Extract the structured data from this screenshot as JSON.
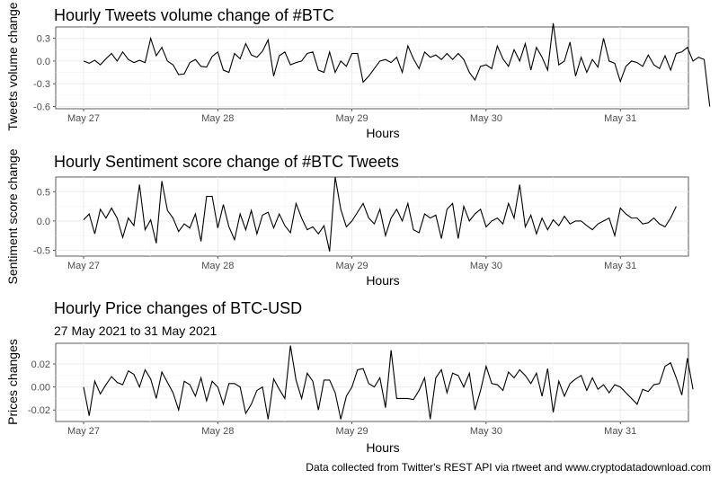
{
  "caption": "Data collected from Twitter's REST API via rtweet and www.cryptodatadownload.com",
  "chart_data": [
    {
      "type": "line",
      "title": "Hourly Tweets volume change of #BTC",
      "subtitle": "",
      "xlabel": "Hours",
      "ylabel": "Tweets volume change",
      "x_ticks": [
        "May 27",
        "May 28",
        "May 29",
        "May 30",
        "May 31"
      ],
      "y_ticks": [
        "-0.6",
        "-0.3",
        "0.0",
        "0.3"
      ],
      "y_tick_values": [
        -0.6,
        -0.3,
        0.0,
        0.3
      ],
      "ylim": [
        -0.63,
        0.45
      ],
      "x_start_hour": 0,
      "grid": true,
      "series": [
        {
          "values": [
            0.0,
            -0.03,
            0.01,
            -0.05,
            0.03,
            0.1,
            0.0,
            0.12,
            0.02,
            -0.02,
            0.01,
            -0.02,
            0.3,
            0.07,
            0.18,
            0.0,
            -0.05,
            -0.18,
            -0.17,
            -0.02,
            0.02,
            -0.07,
            -0.08,
            0.06,
            0.12,
            -0.12,
            -0.15,
            0.1,
            0.03,
            0.23,
            0.08,
            0.05,
            0.13,
            0.28,
            -0.2,
            0.07,
            0.12,
            -0.05,
            -0.02,
            0.0,
            0.1,
            0.12,
            -0.12,
            -0.15,
            0.12,
            -0.15,
            0.0,
            -0.07,
            0.1,
            0.1,
            -0.28,
            -0.2,
            -0.1,
            0.0,
            0.02,
            -0.02,
            0.05,
            -0.15,
            0.2,
            0.03,
            -0.1,
            0.12,
            0.05,
            0.08,
            0.02,
            0.1,
            0.02,
            0.1,
            0.02,
            -0.15,
            -0.25,
            -0.07,
            -0.05,
            -0.1,
            0.2,
            0.03,
            -0.07,
            0.15,
            0.0,
            0.23,
            -0.12,
            0.18,
            0.05,
            -0.12,
            0.5,
            -0.05,
            0.0,
            0.25,
            -0.2,
            0.05,
            -0.15,
            0.02,
            -0.08,
            0.3,
            0.0,
            -0.03,
            -0.27,
            -0.07,
            0.0,
            -0.02,
            -0.07,
            0.08,
            -0.05,
            -0.1,
            0.07,
            -0.12,
            0.1,
            0.12,
            0.18,
            0.0,
            0.05,
            0.02,
            -0.6
          ]
        }
      ]
    },
    {
      "type": "line",
      "title": "Hourly Sentiment score change of #BTC Tweets",
      "subtitle": "",
      "xlabel": "Hours",
      "ylabel": "Sentiment score change",
      "x_ticks": [
        "May 27",
        "May 28",
        "May 29",
        "May 30",
        "May 31"
      ],
      "y_ticks": [
        "-0.5",
        "0.0",
        "0.5"
      ],
      "y_tick_values": [
        -0.5,
        0.0,
        0.5
      ],
      "ylim": [
        -0.6,
        0.75
      ],
      "x_start_hour": 0,
      "grid": true,
      "series": [
        {
          "values": [
            0.02,
            0.12,
            -0.22,
            0.2,
            0.05,
            0.22,
            0.05,
            -0.28,
            0.05,
            -0.08,
            0.62,
            -0.15,
            0.02,
            -0.38,
            0.68,
            0.18,
            0.05,
            -0.18,
            -0.05,
            -0.12,
            0.12,
            -0.35,
            0.42,
            0.42,
            -0.12,
            0.28,
            -0.1,
            -0.32,
            0.12,
            -0.15,
            0.18,
            -0.22,
            0.1,
            0.15,
            -0.12,
            0.12,
            -0.08,
            -0.2,
            0.3,
            0.05,
            -0.15,
            -0.1,
            -0.22,
            -0.08,
            -0.52,
            0.75,
            0.2,
            -0.1,
            0.0,
            0.15,
            0.3,
            0.05,
            -0.05,
            0.2,
            -0.25,
            0.05,
            0.2,
            0.0,
            0.3,
            -0.15,
            -0.2,
            0.12,
            0.05,
            0.1,
            -0.3,
            0.2,
            0.3,
            -0.3,
            0.25,
            0.0,
            0.12,
            0.2,
            -0.1,
            0.0,
            0.05,
            -0.05,
            0.3,
            0.05,
            0.62,
            -0.1,
            0.1,
            -0.22,
            0.05,
            -0.15,
            0.02,
            -0.08,
            0.08,
            -0.05,
            0.0,
            0.0,
            -0.08,
            -0.15,
            -0.05,
            0.0,
            0.05,
            -0.25,
            0.22,
            0.12,
            0.05,
            0.05,
            -0.05,
            -0.03,
            0.05,
            -0.05,
            -0.1,
            0.05,
            0.25
          ]
        }
      ]
    },
    {
      "type": "line",
      "title": "Hourly Price changes of BTC-USD",
      "subtitle": "27 May 2021 to 31 May 2021",
      "xlabel": "Hours",
      "ylabel": "Prices changes",
      "x_ticks": [
        "May 27",
        "May 28",
        "May 29",
        "May 30",
        "May 31"
      ],
      "y_ticks": [
        "-0.02",
        "0.00",
        "0.02"
      ],
      "y_tick_values": [
        -0.02,
        0.0,
        0.02
      ],
      "ylim": [
        -0.03,
        0.038
      ],
      "x_start_hour": 0,
      "grid": true,
      "series": [
        {
          "values": [
            0.0,
            -0.025,
            0.005,
            -0.006,
            0.002,
            0.009,
            0.004,
            0.002,
            0.014,
            0.011,
            0.0,
            0.015,
            0.007,
            -0.01,
            0.013,
            0.004,
            -0.005,
            -0.02,
            0.005,
            0.002,
            -0.008,
            0.008,
            -0.012,
            0.005,
            0.0,
            -0.015,
            0.003,
            0.003,
            0.0,
            -0.023,
            -0.015,
            -0.003,
            0.0,
            -0.028,
            0.007,
            -0.002,
            -0.01,
            0.036,
            0.006,
            -0.01,
            0.012,
            0.005,
            -0.02,
            0.006,
            0.006,
            -0.005,
            -0.028,
            -0.008,
            0.0,
            0.015,
            0.016,
            0.003,
            0.0,
            0.008,
            -0.018,
            0.032,
            -0.01,
            -0.01,
            -0.01,
            -0.011,
            -0.003,
            0.008,
            -0.028,
            0.008,
            0.015,
            -0.005,
            0.012,
            0.01,
            0.0,
            0.012,
            -0.02,
            -0.003,
            0.018,
            0.003,
            0.002,
            -0.003,
            0.013,
            0.008,
            0.015,
            0.01,
            0.003,
            0.012,
            -0.008,
            0.016,
            -0.022,
            0.005,
            -0.008,
            0.003,
            0.007,
            0.01,
            -0.003,
            0.008,
            -0.002,
            0.002,
            -0.005,
            0.002,
            0.0,
            -0.005,
            -0.01,
            -0.015,
            -0.002,
            -0.004,
            0.002,
            0.003,
            0.018,
            0.021,
            0.008,
            -0.007,
            0.025,
            -0.002
          ]
        }
      ]
    }
  ]
}
